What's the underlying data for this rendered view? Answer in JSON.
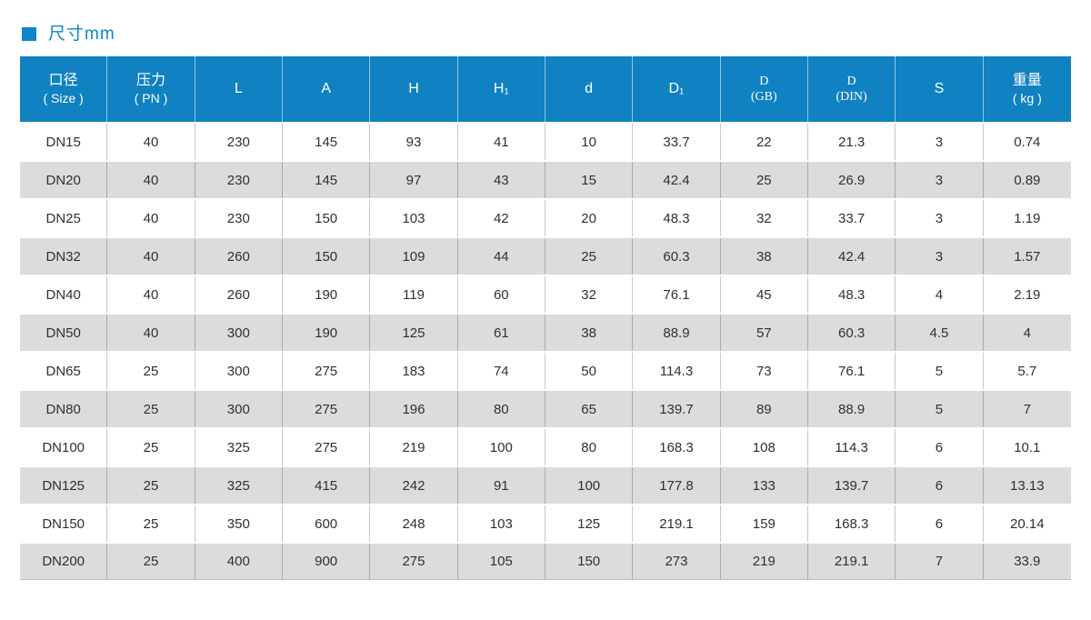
{
  "page": {
    "title": "尺寸mm",
    "accent_color": "#1081c1",
    "title_color": "#0c85cc",
    "alt_row_color": "#dcdcdc"
  },
  "table": {
    "headers": [
      {
        "line1": "口径",
        "line2": "( Size )"
      },
      {
        "line1": "压力",
        "line2": "( PN )"
      },
      {
        "line1": "L"
      },
      {
        "line1": "A"
      },
      {
        "line1": "H"
      },
      {
        "line1": "H₁"
      },
      {
        "line1": "d"
      },
      {
        "line1": "D₁"
      },
      {
        "line1": "D",
        "line2": "(GB)"
      },
      {
        "line1": "D",
        "line2": "(DIN)"
      },
      {
        "line1": "S"
      },
      {
        "line1": "重量",
        "line2": "( kg )"
      }
    ]
  },
  "chart_data": {
    "type": "table",
    "title": "尺寸mm",
    "columns": [
      "口径 ( Size )",
      "压力 ( PN )",
      "L",
      "A",
      "H",
      "H₁",
      "d",
      "D₁",
      "D (GB)",
      "D (DIN)",
      "S",
      "重量 ( kg )"
    ],
    "rows": [
      [
        "DN15",
        "40",
        "230",
        "145",
        "93",
        "41",
        "10",
        "33.7",
        "22",
        "21.3",
        "3",
        "0.74"
      ],
      [
        "DN20",
        "40",
        "230",
        "145",
        "97",
        "43",
        "15",
        "42.4",
        "25",
        "26.9",
        "3",
        "0.89"
      ],
      [
        "DN25",
        "40",
        "230",
        "150",
        "103",
        "42",
        "20",
        "48.3",
        "32",
        "33.7",
        "3",
        "1.19"
      ],
      [
        "DN32",
        "40",
        "260",
        "150",
        "109",
        "44",
        "25",
        "60.3",
        "38",
        "42.4",
        "3",
        "1.57"
      ],
      [
        "DN40",
        "40",
        "260",
        "190",
        "119",
        "60",
        "32",
        "76.1",
        "45",
        "48.3",
        "4",
        "2.19"
      ],
      [
        "DN50",
        "40",
        "300",
        "190",
        "125",
        "61",
        "38",
        "88.9",
        "57",
        "60.3",
        "4.5",
        "4"
      ],
      [
        "DN65",
        "25",
        "300",
        "275",
        "183",
        "74",
        "50",
        "114.3",
        "73",
        "76.1",
        "5",
        "5.7"
      ],
      [
        "DN80",
        "25",
        "300",
        "275",
        "196",
        "80",
        "65",
        "139.7",
        "89",
        "88.9",
        "5",
        "7"
      ],
      [
        "DN100",
        "25",
        "325",
        "275",
        "219",
        "100",
        "80",
        "168.3",
        "108",
        "114.3",
        "6",
        "10.1"
      ],
      [
        "DN125",
        "25",
        "325",
        "415",
        "242",
        "91",
        "100",
        "177.8",
        "133",
        "139.7",
        "6",
        "13.13"
      ],
      [
        "DN150",
        "25",
        "350",
        "600",
        "248",
        "103",
        "125",
        "219.1",
        "159",
        "168.3",
        "6",
        "20.14"
      ],
      [
        "DN200",
        "25",
        "400",
        "900",
        "275",
        "105",
        "150",
        "273",
        "219",
        "219.1",
        "7",
        "33.9"
      ]
    ]
  }
}
